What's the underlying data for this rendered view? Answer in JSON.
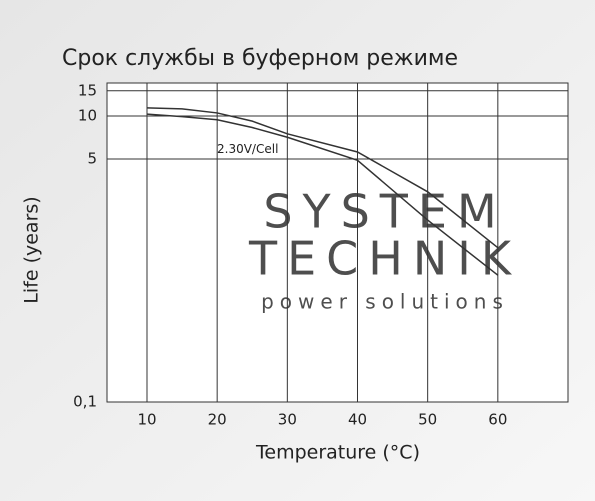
{
  "chart_data": {
    "type": "line",
    "title": "Срок службы в буферном режиме",
    "xlabel": "Temperature (°C)",
    "ylabel": "Life (years)",
    "annotation": "2.30V/Cell",
    "watermark": [
      "SYSTEM",
      "TECHNIK",
      "power solutions"
    ],
    "x": [
      10,
      15,
      20,
      25,
      30,
      40,
      50,
      60
    ],
    "series": [
      {
        "color": "#333333",
        "values": [
          11.4,
          11.2,
          10.5,
          9.2,
          7.5,
          5.6,
          2.95,
          1.2
        ]
      },
      {
        "color": "#333333",
        "values": [
          10.3,
          9.9,
          9.4,
          8.3,
          7.1,
          4.9,
          1.87,
          0.77
        ]
      }
    ],
    "xlim": [
      4.3,
      70
    ],
    "xticks": [
      10,
      20,
      30,
      40,
      50,
      60
    ],
    "ylim": [
      0.1,
      17
    ],
    "log_y": true,
    "yticks": [
      {
        "value": 0.1,
        "label": "0,1"
      },
      5,
      10,
      15
    ],
    "grid": true
  }
}
